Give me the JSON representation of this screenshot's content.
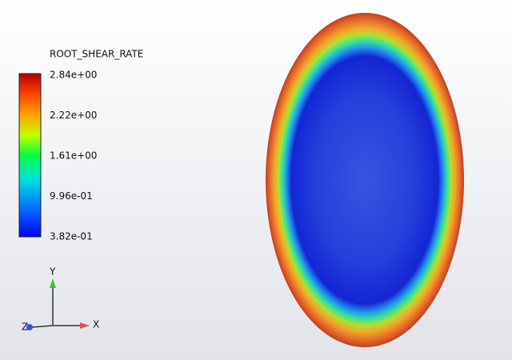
{
  "legend": {
    "title": "ROOT_SHEAR_RATE",
    "labels": [
      "2.84e+00",
      "2.22e+00",
      "1.61e+00",
      "9.96e-01",
      "3.82e-01"
    ]
  },
  "triad": {
    "y": "Y",
    "x": "X",
    "z": "Z"
  }
}
